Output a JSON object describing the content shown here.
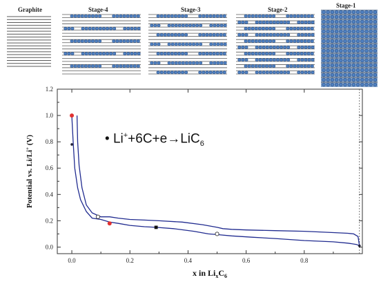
{
  "stages": [
    {
      "label": "Graphite",
      "kind": "graphite"
    },
    {
      "label": "Stage-4",
      "kind": "stage",
      "period": 4
    },
    {
      "label": "Stage-3",
      "kind": "stage",
      "period": 3
    },
    {
      "label": "Stage-2",
      "kind": "stage",
      "period": 2
    },
    {
      "label": "Stage-1",
      "kind": "stage1"
    }
  ],
  "colors": {
    "layer_line": "#5a5a5a",
    "ion_fill": "#4f80c0",
    "ion_edge": "#2a4f86",
    "stage1_bg": "#8aa9cf",
    "curve": "#1f2a8f",
    "marker_red": "#e23232",
    "marker_black": "#111111"
  },
  "equation": {
    "bullet": "•",
    "lhs": "Li",
    "lhs_sup": "+",
    "middle": "+6C+e",
    "arrow": "→",
    "rhs": "LiC",
    "rhs_sub": "6"
  },
  "chart_data": {
    "type": "line",
    "xlabel": "x in LixC6",
    "xlabel_parts": {
      "pre": "x in Li",
      "sub1": "x",
      "mid": "C",
      "sub2": "6"
    },
    "ylabel": "Potential vs. Li/Li+ (V)",
    "ylabel_parts": {
      "pre": "Potential vs. Li/Li",
      "sup": "+",
      "post": " (V)"
    },
    "xlim": [
      -0.05,
      1.0
    ],
    "ylim": [
      -0.05,
      1.2
    ],
    "xticks": [
      0.0,
      0.2,
      0.4,
      0.6,
      0.8
    ],
    "xtick_labels": [
      "0.0",
      "0.2",
      "0.4",
      "0.6",
      "0.8"
    ],
    "yticks": [
      0.0,
      0.2,
      0.4,
      0.6,
      0.8,
      1.0,
      1.2
    ],
    "ytick_labels": [
      "0.0",
      "0.2",
      "0.4",
      "0.6",
      "0.8",
      "1.0",
      "1.2"
    ],
    "grid": false,
    "series": [
      {
        "x": [
          0.0,
          0.005,
          0.01,
          0.02,
          0.03,
          0.05,
          0.07,
          0.1,
          0.13,
          0.16,
          0.2,
          0.25,
          0.29,
          0.35,
          0.42,
          0.47,
          0.5,
          0.55,
          0.62,
          0.7,
          0.8,
          0.9,
          0.95,
          0.98,
          0.99
        ],
        "y": [
          1.0,
          0.78,
          0.6,
          0.45,
          0.36,
          0.27,
          0.22,
          0.21,
          0.19,
          0.18,
          0.165,
          0.155,
          0.15,
          0.14,
          0.12,
          0.1,
          0.095,
          0.085,
          0.075,
          0.065,
          0.05,
          0.04,
          0.03,
          0.02,
          0.01
        ]
      },
      {
        "x": [
          0.99,
          0.985,
          0.97,
          0.95,
          0.9,
          0.8,
          0.7,
          0.6,
          0.55,
          0.52,
          0.5,
          0.45,
          0.38,
          0.3,
          0.25,
          0.2,
          0.16,
          0.13,
          0.1,
          0.07,
          0.05,
          0.035,
          0.025,
          0.02,
          0.018
        ],
        "y": [
          0.01,
          0.08,
          0.1,
          0.105,
          0.11,
          0.12,
          0.125,
          0.13,
          0.135,
          0.14,
          0.15,
          0.17,
          0.19,
          0.2,
          0.205,
          0.21,
          0.22,
          0.23,
          0.23,
          0.26,
          0.32,
          0.45,
          0.62,
          0.8,
          1.0
        ]
      }
    ],
    "markers": [
      {
        "x": 0.0,
        "y": 1.0,
        "style": "red-filled"
      },
      {
        "x": 0.0,
        "y": 0.78,
        "style": "small-dark"
      },
      {
        "x": 0.13,
        "y": 0.18,
        "style": "red-filled"
      },
      {
        "x": 0.29,
        "y": 0.15,
        "style": "black-square"
      },
      {
        "x": 0.09,
        "y": 0.23,
        "style": "open-circle"
      },
      {
        "x": 0.5,
        "y": 0.1,
        "style": "open-circle"
      },
      {
        "x": 0.99,
        "y": 0.01,
        "style": "small-dark"
      }
    ],
    "vline_x": 0.99
  }
}
